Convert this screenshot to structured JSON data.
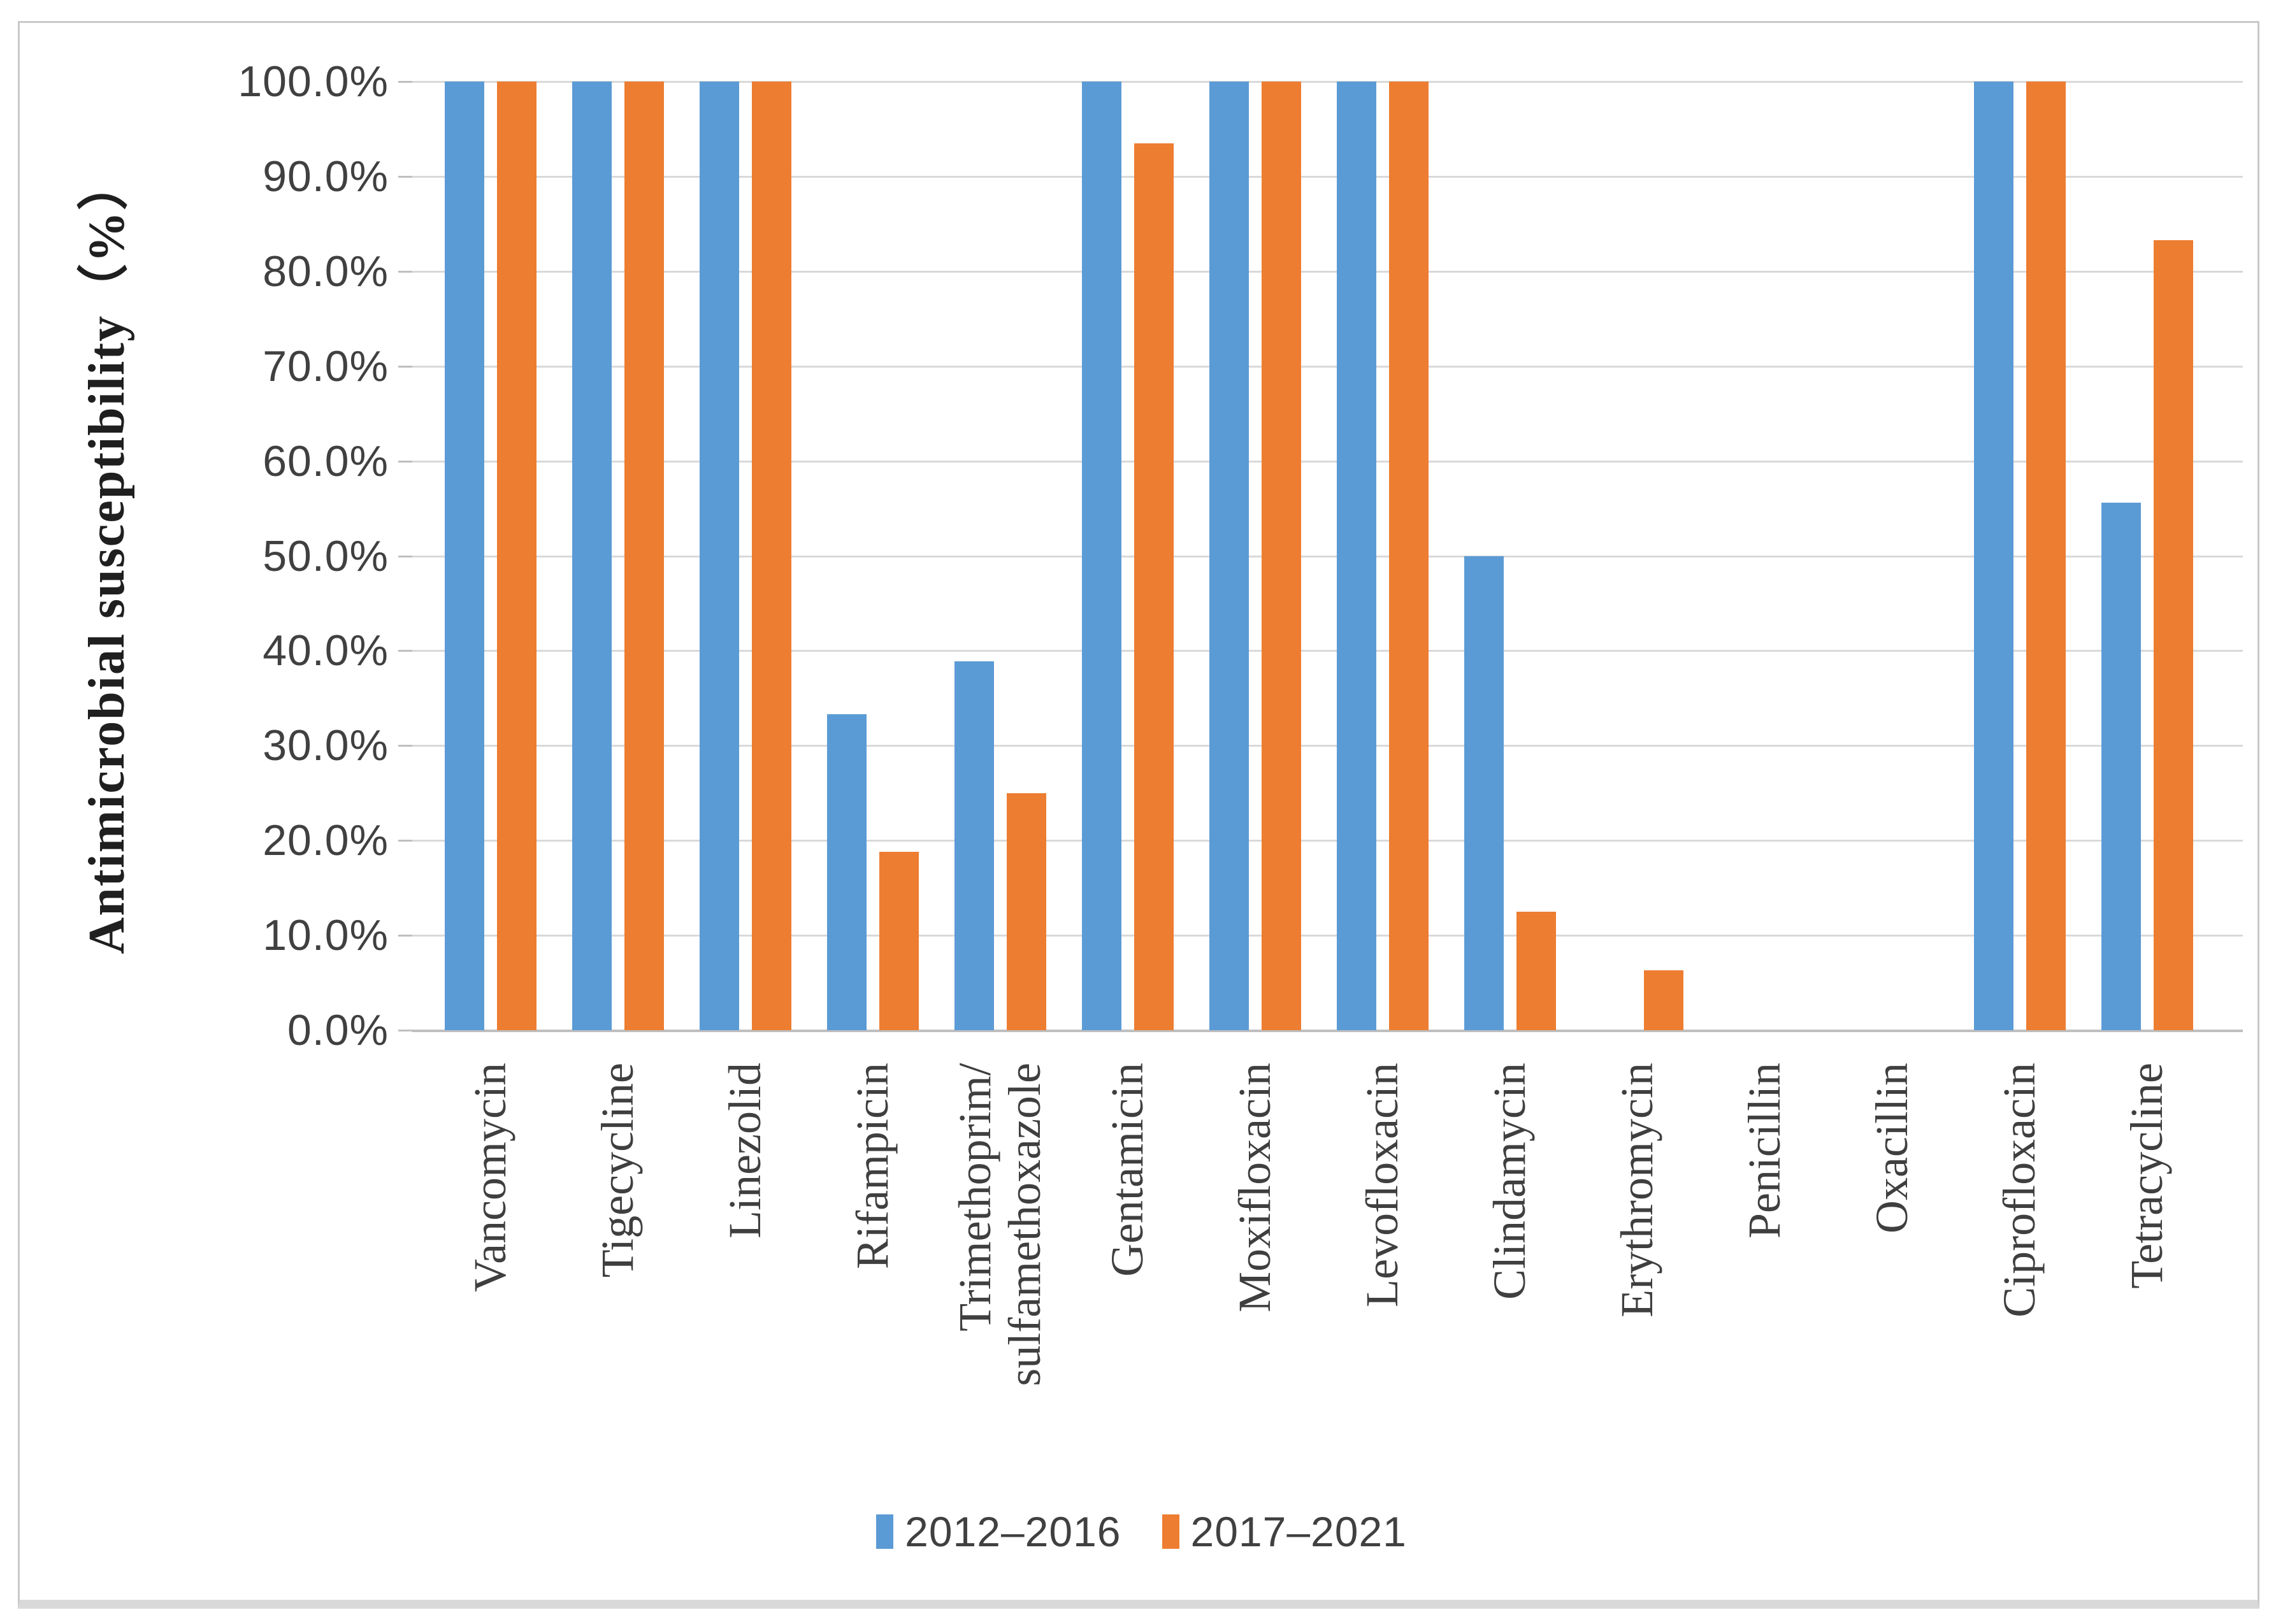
{
  "figure": {
    "kind": "grouped-bar-figure",
    "background": "#ffffff",
    "border_color": "#c9c9c9"
  },
  "colors": {
    "series_2012_2016": "#5B9BD5",
    "series_2017_2021": "#ED7D31",
    "gridline": "#D9D9D9",
    "axis_line": "#BFBFBF",
    "tick_text": "#404040",
    "category_text": "#3F3F3F",
    "title_text": "#1F1F1F"
  },
  "chart_data": {
    "type": "bar",
    "title": "",
    "xlabel": "",
    "ylabel": "Antimicrobial susceptibility（%）",
    "ylim": [
      0,
      100
    ],
    "grid": true,
    "legend_position": "bottom",
    "y_ticks": [
      "100.0%",
      "90.0%",
      "80.0%",
      "70.0%",
      "60.0%",
      "50.0%",
      "40.0%",
      "30.0%",
      "20.0%",
      "10.0%",
      "0.0%"
    ],
    "categories": [
      "Vancomycin",
      "Tigecycline",
      "Linezolid",
      "Rifampicin",
      "Trimethoprim/\nsulfamethoxazole",
      "Gentamicin",
      "Moxifloxacin",
      "Levofloxacin",
      "Clindamycin",
      "Erythromycin",
      "Penicillin",
      "Oxacillin",
      "Ciprofloxacin",
      "Tetracycline"
    ],
    "series": [
      {
        "name": "2012–2016",
        "color": "#5B9BD5",
        "values": [
          100,
          100,
          100,
          33.3,
          38.9,
          100,
          100,
          100,
          50.0,
          0,
          0,
          0,
          100,
          55.6
        ]
      },
      {
        "name": "2017–2021",
        "color": "#ED7D31",
        "values": [
          100,
          100,
          100,
          18.8,
          25.0,
          93.5,
          100,
          100,
          12.5,
          6.3,
          0,
          0,
          100,
          83.3
        ]
      }
    ]
  }
}
